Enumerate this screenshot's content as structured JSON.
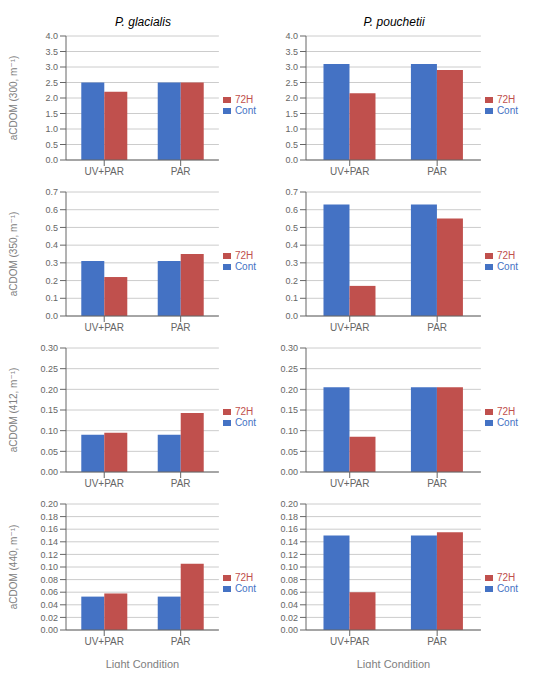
{
  "chart_data": [
    {
      "type": "bar",
      "title": "P. glacialis",
      "ylabel": "aCDOM (300, m⁻¹)",
      "categories": [
        "UV+PAR",
        "PAR"
      ],
      "series": [
        {
          "name": "Cont",
          "color": "#4472C4",
          "values": [
            2.5,
            2.5
          ]
        },
        {
          "name": "72H",
          "color": "#C0504D",
          "values": [
            2.2,
            2.5
          ]
        }
      ],
      "ylim": [
        0,
        4
      ],
      "yticks": [
        {
          "value": 0,
          "label": "0.0"
        },
        0.5,
        {
          "value": 1,
          "label": "1.0"
        },
        1.5,
        {
          "value": 2,
          "label": "2.0"
        },
        2.5,
        {
          "value": 3,
          "label": "3.0"
        },
        3.5,
        {
          "value": 4,
          "label": "4.0"
        }
      ],
      "grid": true,
      "legend": "right"
    },
    {
      "type": "bar",
      "title": "P. pouchetii",
      "categories": [
        "UV+PAR",
        "PAR"
      ],
      "series": [
        {
          "name": "Cont",
          "color": "#4472C4",
          "values": [
            3.1,
            3.1
          ]
        },
        {
          "name": "72H",
          "color": "#C0504D",
          "values": [
            2.15,
            2.9
          ]
        }
      ],
      "ylim": [
        0,
        4
      ],
      "yticks": [
        {
          "value": 0,
          "label": "0.0"
        },
        0.5,
        {
          "value": 1,
          "label": "1.0"
        },
        1.5,
        {
          "value": 2,
          "label": "2.0"
        },
        2.5,
        {
          "value": 3,
          "label": "3.0"
        },
        3.5,
        {
          "value": 4,
          "label": "4.0"
        }
      ],
      "grid": true,
      "legend": "right"
    },
    {
      "type": "bar",
      "ylabel": "aCDOM (350, m⁻¹)",
      "categories": [
        "UV+PAR",
        "PAR"
      ],
      "series": [
        {
          "name": "Cont",
          "color": "#4472C4",
          "values": [
            0.31,
            0.31
          ]
        },
        {
          "name": "72H",
          "color": "#C0504D",
          "values": [
            0.22,
            0.35
          ]
        }
      ],
      "ylim": [
        0,
        0.7
      ],
      "yticks": [
        {
          "value": 0,
          "label": "0.0"
        },
        0.1,
        0.2,
        0.3,
        0.4,
        0.5,
        0.6,
        0.7
      ],
      "grid": true,
      "legend": "right"
    },
    {
      "type": "bar",
      "categories": [
        "UV+PAR",
        "PAR"
      ],
      "series": [
        {
          "name": "Cont",
          "color": "#4472C4",
          "values": [
            0.63,
            0.63
          ]
        },
        {
          "name": "72H",
          "color": "#C0504D",
          "values": [
            0.17,
            0.55
          ]
        }
      ],
      "ylim": [
        0,
        0.7
      ],
      "yticks": [
        {
          "value": 0,
          "label": "0.0"
        },
        0.1,
        0.2,
        0.3,
        0.4,
        0.5,
        0.6,
        0.7
      ],
      "grid": true,
      "legend": "right"
    },
    {
      "type": "bar",
      "ylabel": "aCDOM (412, m⁻¹)",
      "categories": [
        "UV+PAR",
        "PAR"
      ],
      "series": [
        {
          "name": "Cont",
          "color": "#4472C4",
          "values": [
            0.09,
            0.09
          ]
        },
        {
          "name": "72H",
          "color": "#C0504D",
          "values": [
            0.095,
            0.143
          ]
        }
      ],
      "ylim": [
        0,
        0.3
      ],
      "yticks": [
        {
          "value": 0,
          "label": "0.00"
        },
        0.05,
        {
          "value": 0.1,
          "label": "0.10"
        },
        0.15,
        {
          "value": 0.2,
          "label": "0.20"
        },
        0.25,
        {
          "value": 0.3,
          "label": "0.30"
        }
      ],
      "grid": true,
      "legend": "right"
    },
    {
      "type": "bar",
      "categories": [
        "UV+PAR",
        "PAR"
      ],
      "series": [
        {
          "name": "Cont",
          "color": "#4472C4",
          "values": [
            0.205,
            0.205
          ]
        },
        {
          "name": "72H",
          "color": "#C0504D",
          "values": [
            0.085,
            0.205
          ]
        }
      ],
      "ylim": [
        0,
        0.3
      ],
      "yticks": [
        {
          "value": 0,
          "label": "0.00"
        },
        0.05,
        {
          "value": 0.1,
          "label": "0.10"
        },
        0.15,
        {
          "value": 0.2,
          "label": "0.20"
        },
        0.25,
        {
          "value": 0.3,
          "label": "0.30"
        }
      ],
      "grid": true,
      "legend": "right"
    },
    {
      "type": "bar",
      "ylabel": "aCDOM (440, m⁻¹)",
      "xlabel": "Light Condition",
      "categories": [
        "UV+PAR",
        "PAR"
      ],
      "series": [
        {
          "name": "Cont",
          "color": "#4472C4",
          "values": [
            0.053,
            0.053
          ]
        },
        {
          "name": "72H",
          "color": "#C0504D",
          "values": [
            0.058,
            0.105
          ]
        }
      ],
      "ylim": [
        0,
        0.2
      ],
      "yticks": [
        {
          "value": 0,
          "label": "0.00"
        },
        0.02,
        0.04,
        0.06,
        0.08,
        {
          "value": 0.1,
          "label": "0.10"
        },
        0.12,
        0.14,
        0.16,
        0.18,
        {
          "value": 0.2,
          "label": "0.20"
        }
      ],
      "grid": true,
      "legend": "right"
    },
    {
      "type": "bar",
      "xlabel": "Light Condition",
      "categories": [
        "UV+PAR",
        "PAR"
      ],
      "series": [
        {
          "name": "Cont",
          "color": "#4472C4",
          "values": [
            0.15,
            0.15
          ]
        },
        {
          "name": "72H",
          "color": "#C0504D",
          "values": [
            0.06,
            0.155
          ]
        }
      ],
      "ylim": [
        0,
        0.2
      ],
      "yticks": [
        {
          "value": 0,
          "label": "0.00"
        },
        0.02,
        0.04,
        0.06,
        0.08,
        {
          "value": 0.1,
          "label": "0.10"
        },
        0.12,
        0.14,
        0.16,
        0.18,
        {
          "value": 0.2,
          "label": "0.20"
        }
      ],
      "grid": true,
      "legend": "right"
    }
  ]
}
